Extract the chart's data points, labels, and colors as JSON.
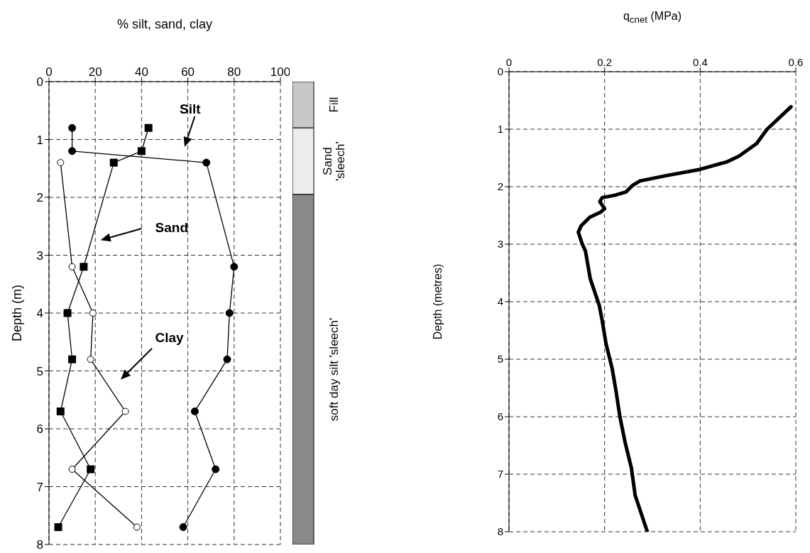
{
  "chart_data": [
    {
      "type": "line",
      "xlabel": "% silt, sand, clay",
      "ylabel": "Depth (m)",
      "xlim": [
        0,
        100
      ],
      "xticks": [
        0,
        20,
        40,
        60,
        80,
        100
      ],
      "ylim": [
        8,
        0
      ],
      "yticks": [
        0,
        1,
        2,
        3,
        4,
        5,
        6,
        7,
        8
      ],
      "grid": true,
      "line_style": "solid",
      "series": [
        {
          "name": "Silt",
          "color": "#000000",
          "marker": "circle",
          "x": [
            10,
            10,
            68,
            80,
            78,
            77,
            63,
            72,
            58
          ],
          "values": [
            0.8,
            1.2,
            1.4,
            3.2,
            4.0,
            4.8,
            5.7,
            6.7,
            7.7
          ]
        },
        {
          "name": "Sand",
          "color": "#000000",
          "marker": "square",
          "x": [
            43,
            40,
            28,
            15,
            8,
            10,
            5,
            18,
            4
          ],
          "values": [
            0.8,
            1.2,
            1.4,
            3.2,
            4.0,
            4.8,
            5.7,
            6.7,
            7.7
          ]
        },
        {
          "name": "Clay",
          "color": "#000000",
          "marker": "circle",
          "x": [
            5,
            10,
            19,
            18,
            33,
            10,
            38
          ],
          "values": [
            1.4,
            3.2,
            4.0,
            4.8,
            5.7,
            6.7,
            7.7
          ]
        }
      ]
    },
    {
      "type": "bar",
      "stacked": true,
      "categories": [
        null
      ],
      "ylim": [
        8,
        0
      ],
      "tick_labels": false,
      "series": [
        {
          "name": "Fill",
          "color": "#c8c8c8",
          "values": [
            0.8
          ]
        },
        {
          "name": "Sand 'sleech'",
          "color": "#ececec",
          "values": [
            1.15
          ]
        },
        {
          "name": "soft day silt 'sleech'",
          "color": "#8a8a8a",
          "values": [
            6.05
          ]
        }
      ]
    },
    {
      "type": "line",
      "xlabel": "q$_{cnet}$ (MPa)",
      "ylabel": "Depth (metres)",
      "xlim": [
        0,
        0.6
      ],
      "xticks": [
        0,
        0.2,
        0.4,
        0.6
      ],
      "ylim": [
        8,
        0
      ],
      "yticks": [
        0,
        1,
        2,
        3,
        4,
        5,
        6,
        7,
        8
      ],
      "grid": true,
      "line_style": "solid",
      "marker": "none",
      "series": [
        {
          "color": "#000000",
          "x": [
            0.59,
            0.54,
            0.518,
            0.481,
            0.455,
            0.399,
            0.327,
            0.274,
            0.258,
            0.245,
            0.221,
            0.195,
            0.19,
            0.2,
            0.192,
            0.169,
            0.151,
            0.145,
            0.153,
            0.16,
            0.17,
            0.189,
            0.195,
            0.203,
            0.216,
            0.224,
            0.232,
            0.243,
            0.256,
            0.264,
            0.289
          ],
          "values": [
            0.61,
            1.0,
            1.25,
            1.47,
            1.57,
            1.7,
            1.81,
            1.9,
            1.98,
            2.09,
            2.15,
            2.19,
            2.26,
            2.38,
            2.44,
            2.53,
            2.68,
            2.79,
            2.99,
            3.12,
            3.6,
            4.07,
            4.33,
            4.73,
            5.17,
            5.56,
            6.0,
            6.45,
            6.89,
            7.37,
            7.99
          ]
        }
      ]
    }
  ]
}
